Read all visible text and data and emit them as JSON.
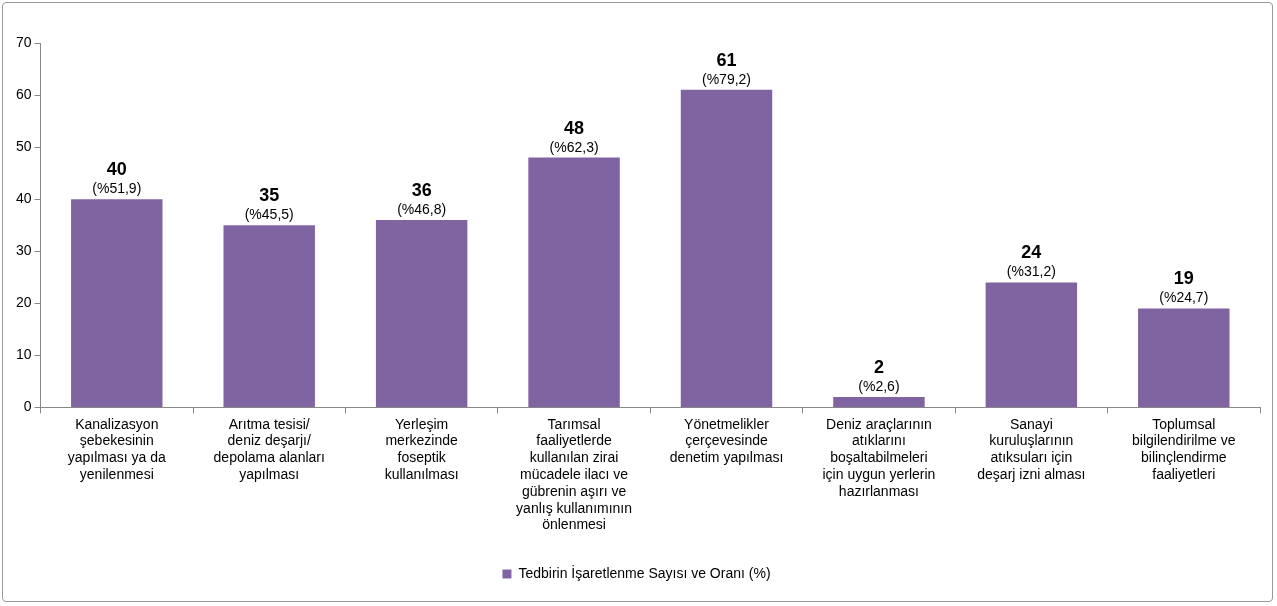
{
  "chart_data": {
    "type": "bar",
    "categories": [
      "Kanalizasyon şebekesinin yapılması ya da yenilenmesi",
      "Arıtma tesisi/ deniz deşarjı/ depolama alanları yapılması",
      "Yerleşim merkezinde foseptik kullanılması",
      "Tarımsal faaliyetlerde kullanılan zirai mücadele ilacı ve gübrenin aşırı ve yanlış kullanımının önlenmesi",
      "Yönetmelikler çerçevesinde denetim yapılması",
      "Deniz araçlarının atıklarını boşaltabilmeleri için uygun yerlerin hazırlanması",
      "Sanayi kuruluşlarının atıksuları için deşarj izni alması",
      "Toplumsal bilgilendirilme ve bilinçlendirme faaliyetleri"
    ],
    "series": [
      {
        "name": "Tedbirin İşaretlenme Sayısı ve Oranı (%)",
        "color": "#8064a2",
        "values": [
          40,
          35,
          36,
          48,
          61,
          2,
          24,
          19
        ],
        "value_labels": [
          "40\n(%51,9)",
          "35\n(%45,5)",
          "36\n(%46,8)",
          "48\n(%62,3)",
          "61\n(%79,2)",
          "2\n(%2,6)",
          "24\n(%31,2)",
          "19\n(%24,7)"
        ]
      }
    ],
    "ylim": [
      0,
      70
    ],
    "yticks": [
      0,
      10,
      20,
      30,
      40,
      50,
      60,
      70
    ],
    "grid": false,
    "legend": "bottom"
  }
}
